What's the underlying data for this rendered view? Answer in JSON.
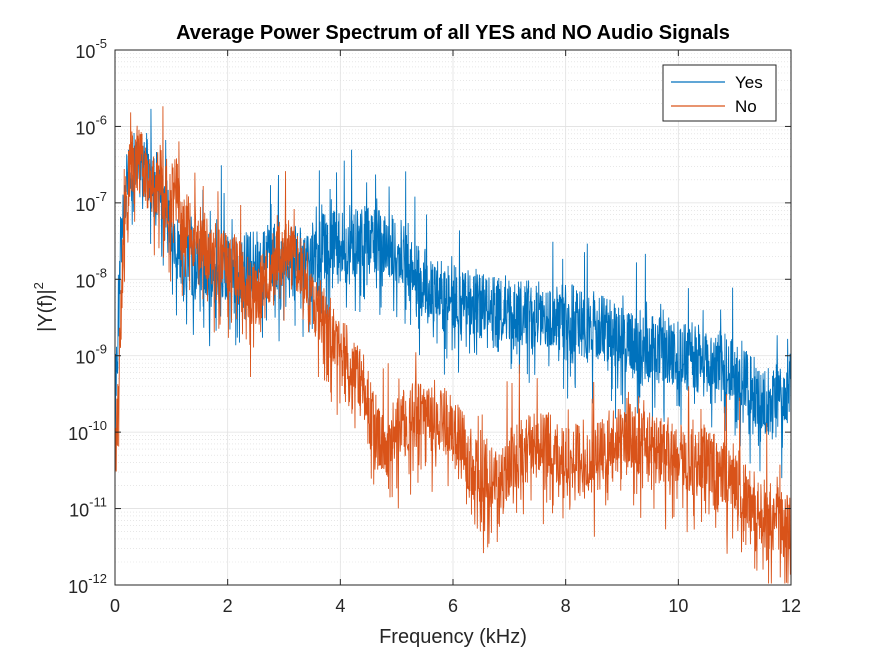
{
  "chart_data": {
    "type": "line",
    "title": "Average Power Spectrum of all YES and NO Audio Signals",
    "xlabel": "Frequency (kHz)",
    "ylabel_base": "|Y(f)|",
    "ylabel_exp": "2",
    "xlim": [
      0,
      12
    ],
    "ylim": [
      1e-12,
      1e-05
    ],
    "yscale": "log",
    "grid": true,
    "minor_grid": true,
    "legend_position": "top-right",
    "x_ticks": [
      {
        "value": 0,
        "label": "0"
      },
      {
        "value": 2,
        "label": "2"
      },
      {
        "value": 4,
        "label": "4"
      },
      {
        "value": 6,
        "label": "6"
      },
      {
        "value": 8,
        "label": "8"
      },
      {
        "value": 10,
        "label": "10"
      },
      {
        "value": 12,
        "label": "12"
      }
    ],
    "y_ticks": [
      {
        "exp": -12,
        "base": "10",
        "sup": "-12"
      },
      {
        "exp": -11,
        "base": "10",
        "sup": "-11"
      },
      {
        "exp": -10,
        "base": "10",
        "sup": "-10"
      },
      {
        "exp": -9,
        "base": "10",
        "sup": "-9"
      },
      {
        "exp": -8,
        "base": "10",
        "sup": "-8"
      },
      {
        "exp": -7,
        "base": "10",
        "sup": "-7"
      },
      {
        "exp": -6,
        "base": "10",
        "sup": "-6"
      },
      {
        "exp": -5,
        "base": "10",
        "sup": "-5"
      }
    ],
    "series": [
      {
        "name": "Yes",
        "color": "#0072BD",
        "x": [
          0.0,
          0.05,
          0.1,
          0.15,
          0.2,
          0.3,
          0.4,
          0.5,
          0.6,
          0.7,
          0.8,
          0.9,
          1.0,
          1.2,
          1.4,
          1.6,
          1.8,
          2.0,
          2.2,
          2.4,
          2.6,
          2.8,
          3.0,
          3.2,
          3.4,
          3.6,
          3.8,
          4.0,
          4.2,
          4.4,
          4.6,
          4.8,
          5.0,
          5.2,
          5.4,
          5.6,
          5.8,
          6.0,
          6.2,
          6.4,
          6.6,
          6.8,
          7.0,
          7.2,
          7.4,
          7.6,
          7.8,
          8.0,
          8.2,
          8.4,
          8.6,
          8.8,
          9.0,
          9.2,
          9.4,
          9.6,
          9.8,
          10.0,
          10.2,
          10.4,
          10.6,
          10.8,
          11.0,
          11.2,
          11.4,
          11.6,
          11.8,
          12.0
        ],
        "y": [
          1e-10,
          2e-09,
          3e-08,
          6e-08,
          1.5e-07,
          3e-07,
          4e-07,
          4e-07,
          3e-07,
          2e-07,
          1.5e-07,
          8e-08,
          4e-08,
          2e-08,
          1.5e-08,
          1.5e-08,
          1.5e-08,
          1.5e-08,
          1.2e-08,
          1.5e-08,
          1.5e-08,
          2e-08,
          2e-08,
          2e-08,
          2e-08,
          2.5e-08,
          3e-08,
          3e-08,
          3e-08,
          3e-08,
          3.5e-08,
          3e-08,
          2.5e-08,
          2e-08,
          1e-08,
          8e-09,
          7e-09,
          6e-09,
          5e-09,
          5e-09,
          4e-09,
          4e-09,
          4e-09,
          3.5e-09,
          3.5e-09,
          3.5e-09,
          3.5e-09,
          3e-09,
          3e-09,
          2.5e-09,
          2.5e-09,
          2e-09,
          1.5e-09,
          1.5e-09,
          1.2e-09,
          1.2e-09,
          1.2e-09,
          1e-09,
          1e-09,
          9e-10,
          8e-10,
          8e-10,
          7e-10,
          5e-10,
          3e-10,
          2.5e-10,
          3e-10,
          4e-10
        ]
      },
      {
        "name": "No",
        "color": "#D95319",
        "x": [
          0.0,
          0.05,
          0.1,
          0.15,
          0.2,
          0.3,
          0.4,
          0.5,
          0.6,
          0.7,
          0.8,
          0.9,
          1.0,
          1.1,
          1.2,
          1.4,
          1.6,
          1.8,
          2.0,
          2.2,
          2.4,
          2.6,
          2.8,
          3.0,
          3.2,
          3.4,
          3.6,
          3.8,
          4.0,
          4.2,
          4.4,
          4.6,
          4.8,
          5.0,
          5.2,
          5.4,
          5.6,
          5.8,
          6.0,
          6.2,
          6.4,
          6.6,
          6.8,
          7.0,
          7.2,
          7.4,
          7.6,
          7.8,
          8.0,
          8.2,
          8.4,
          8.6,
          8.8,
          9.0,
          9.2,
          9.4,
          9.6,
          9.8,
          10.0,
          10.2,
          10.4,
          10.6,
          10.8,
          11.0,
          11.2,
          11.4,
          11.6,
          11.8,
          12.0
        ],
        "y": [
          3e-11,
          2e-10,
          3e-09,
          3e-08,
          1e-07,
          5e-07,
          4e-07,
          3e-07,
          2e-07,
          2e-07,
          2e-07,
          1.5e-07,
          1.2e-07,
          1.5e-07,
          6e-08,
          4e-08,
          3e-08,
          2e-08,
          1.5e-08,
          1.5e-08,
          6e-09,
          8e-09,
          1.5e-08,
          2.5e-08,
          2e-08,
          1e-08,
          4e-09,
          2.5e-09,
          1.5e-09,
          6e-10,
          4e-10,
          1.2e-10,
          8e-11,
          1e-10,
          1.5e-10,
          2e-10,
          1.5e-10,
          1.5e-10,
          1.2e-10,
          6e-11,
          3e-11,
          3e-11,
          2e-11,
          4e-11,
          5e-11,
          8e-11,
          8e-11,
          6e-11,
          4e-11,
          5e-11,
          4e-11,
          5e-11,
          7e-11,
          1e-10,
          8e-11,
          7e-11,
          6e-11,
          6e-11,
          5e-11,
          4e-11,
          4e-11,
          3.5e-11,
          3e-11,
          2.5e-11,
          1.5e-11,
          1e-11,
          8e-12,
          7e-12,
          5e-12
        ]
      }
    ]
  }
}
